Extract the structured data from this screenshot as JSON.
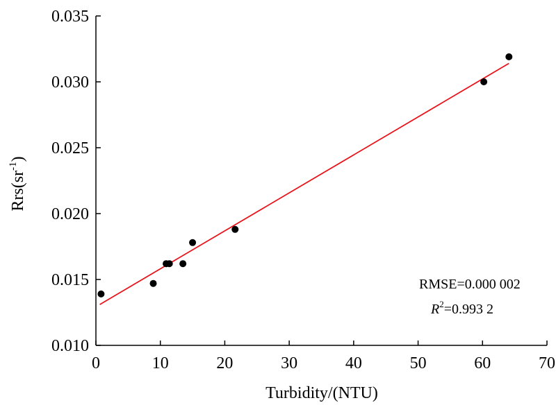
{
  "chart_data": {
    "type": "scatter",
    "xlabel": "Turbidity/(NTU)",
    "ylabel": {
      "base": "Rrs(sr",
      "sup": "-1",
      "close": ")"
    },
    "xlim": [
      0,
      70
    ],
    "ylim": [
      0.01,
      0.035
    ],
    "x_ticks": [
      0,
      10,
      20,
      30,
      40,
      50,
      60,
      70
    ],
    "x_tick_labels": [
      "0",
      "10",
      "20",
      "30",
      "40",
      "50",
      "60",
      "70"
    ],
    "y_ticks": [
      0.01,
      0.015,
      0.02,
      0.025,
      0.03,
      0.035
    ],
    "y_tick_labels": [
      "0.010",
      "0.015",
      "0.020",
      "0.025",
      "0.030",
      "0.035"
    ],
    "grid": false,
    "series": [
      {
        "points": [
          {
            "x": 0.8,
            "y": 0.0139
          },
          {
            "x": 8.9,
            "y": 0.0147
          },
          {
            "x": 10.9,
            "y": 0.0162
          },
          {
            "x": 11.4,
            "y": 0.0162
          },
          {
            "x": 13.5,
            "y": 0.0162
          },
          {
            "x": 15.0,
            "y": 0.0178
          },
          {
            "x": 21.6,
            "y": 0.0188
          },
          {
            "x": 60.2,
            "y": 0.03
          },
          {
            "x": 64.1,
            "y": 0.0319
          }
        ],
        "color": "#000000"
      }
    ],
    "fit_line": {
      "x": [
        0.6,
        64.1
      ],
      "y": [
        0.0131,
        0.0314
      ],
      "color": "#e8141b"
    },
    "annotations": {
      "rmse": "RMSE=0.000 002",
      "r2_symbol": "R",
      "r2_sup": "2",
      "r2_value": "=0.993 2"
    }
  }
}
